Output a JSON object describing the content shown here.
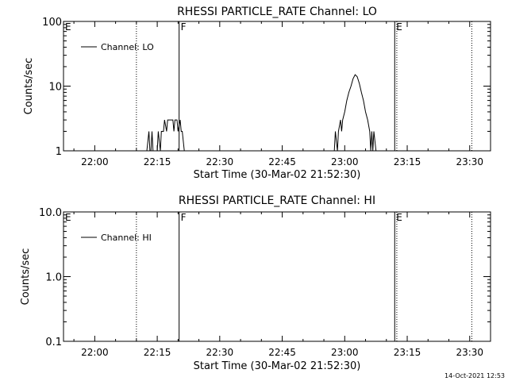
{
  "footer": {
    "timestamp": "14-Oct-2021 12:53"
  },
  "chart_data": [
    {
      "type": "line",
      "title": "RHESSI PARTICLE_RATE Channel: LO",
      "xlabel": "Start Time (30-Mar-02 21:52:30)",
      "ylabel": "Counts/sec",
      "y_scale": "log",
      "ylim": [
        1,
        100
      ],
      "y_ticks": [
        1,
        10,
        100
      ],
      "y_tick_labels": [
        "1",
        "10",
        "100"
      ],
      "xlim": [
        "21:52:30",
        "23:35:00"
      ],
      "x_ticks": [
        "22:00",
        "22:15",
        "22:30",
        "22:45",
        "23:00",
        "23:15",
        "23:30"
      ],
      "legend": {
        "entry": "Channel: LO",
        "placement": "top-left"
      },
      "markers": [
        {
          "label": "E",
          "time": "21:52:30",
          "style": "solid"
        },
        {
          "label": "",
          "time": "22:10:00",
          "style": "dotted"
        },
        {
          "label": "F",
          "time": "22:20:15",
          "style": "solid"
        },
        {
          "label": "E",
          "time": "23:12:00",
          "style": "solid"
        },
        {
          "label": "",
          "time": "23:12:30",
          "style": "dotted"
        },
        {
          "label": "",
          "time": "23:30:30",
          "style": "dotted"
        }
      ],
      "series": [
        {
          "name": "Channel: LO",
          "points": [
            [
              "22:12:30",
              1
            ],
            [
              "22:13:00",
              2
            ],
            [
              "22:13:15",
              1
            ],
            [
              "22:13:30",
              1
            ],
            [
              "22:13:45",
              2
            ],
            [
              "22:14:00",
              1
            ],
            [
              "22:15:00",
              1
            ],
            [
              "22:15:15",
              2
            ],
            [
              "22:15:45",
              1
            ],
            [
              "22:16:00",
              2
            ],
            [
              "22:16:30",
              2
            ],
            [
              "22:16:45",
              3
            ],
            [
              "22:17:15",
              2
            ],
            [
              "22:17:30",
              3
            ],
            [
              "22:18:45",
              3
            ],
            [
              "22:19:00",
              2
            ],
            [
              "22:19:15",
              3
            ],
            [
              "22:19:45",
              3
            ],
            [
              "22:20:00",
              2
            ],
            [
              "22:20:30",
              3
            ],
            [
              "22:20:45",
              2
            ],
            [
              "22:21:00",
              2
            ],
            [
              "22:21:30",
              1
            ],
            [
              "22:57:30",
              1
            ],
            [
              "22:57:45",
              2
            ],
            [
              "22:58:15",
              1
            ],
            [
              "22:58:30",
              2
            ],
            [
              "22:59:00",
              3
            ],
            [
              "22:59:15",
              2
            ],
            [
              "22:59:30",
              3
            ],
            [
              "23:00:00",
              4
            ],
            [
              "23:00:30",
              6
            ],
            [
              "23:01:00",
              8
            ],
            [
              "23:01:30",
              10
            ],
            [
              "23:02:00",
              13
            ],
            [
              "23:02:30",
              15
            ],
            [
              "23:03:00",
              14
            ],
            [
              "23:03:30",
              11
            ],
            [
              "23:04:00",
              8
            ],
            [
              "23:04:30",
              6
            ],
            [
              "23:05:00",
              4
            ],
            [
              "23:05:30",
              3
            ],
            [
              "23:06:00",
              2
            ],
            [
              "23:06:15",
              1
            ],
            [
              "23:06:30",
              2
            ],
            [
              "23:06:45",
              1
            ],
            [
              "23:07:00",
              2
            ],
            [
              "23:07:30",
              1
            ]
          ]
        }
      ]
    },
    {
      "type": "line",
      "title": "RHESSI PARTICLE_RATE Channel: HI",
      "xlabel": "Start Time (30-Mar-02 21:52:30)",
      "ylabel": "Counts/sec",
      "y_scale": "log",
      "ylim": [
        0.1,
        10
      ],
      "y_ticks": [
        0.1,
        1,
        10
      ],
      "y_tick_labels": [
        "0.1",
        "1.0",
        "10.0"
      ],
      "xlim": [
        "21:52:30",
        "23:35:00"
      ],
      "x_ticks": [
        "22:00",
        "22:15",
        "22:30",
        "22:45",
        "23:00",
        "23:15",
        "23:30"
      ],
      "legend": {
        "entry": "Channel: HI",
        "placement": "top-left"
      },
      "markers": [
        {
          "label": "E",
          "time": "21:52:30",
          "style": "solid"
        },
        {
          "label": "",
          "time": "22:10:00",
          "style": "dotted"
        },
        {
          "label": "F",
          "time": "22:20:15",
          "style": "solid"
        },
        {
          "label": "E",
          "time": "23:12:00",
          "style": "solid"
        },
        {
          "label": "",
          "time": "23:12:30",
          "style": "dotted"
        },
        {
          "label": "",
          "time": "23:30:30",
          "style": "dotted"
        }
      ],
      "series": [
        {
          "name": "Channel: HI",
          "points": []
        }
      ]
    }
  ]
}
